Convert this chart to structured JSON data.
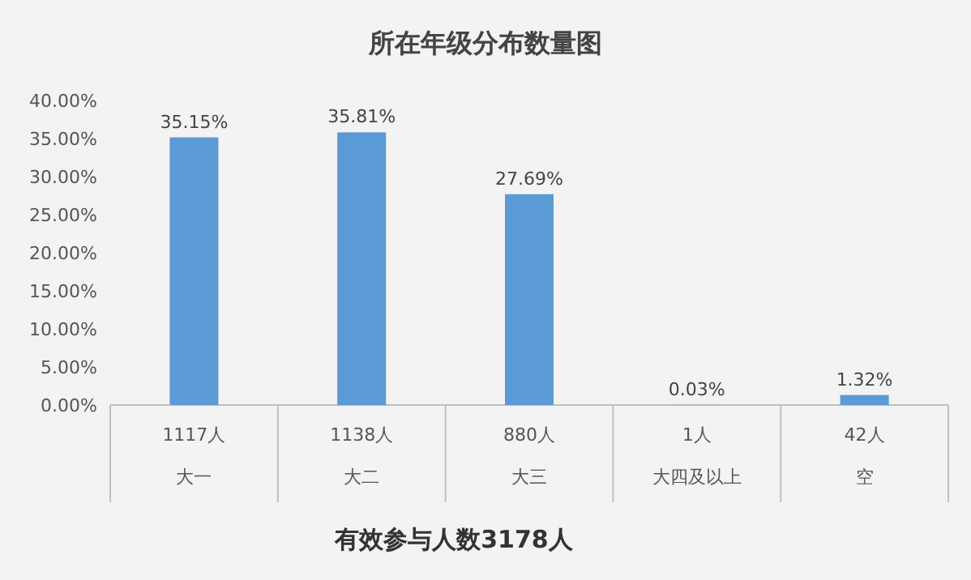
{
  "chart_data": {
    "type": "bar",
    "title": "所在年级分布数量图",
    "categories": [
      "大一",
      "大二",
      "大三",
      "大四及以上",
      "空"
    ],
    "values": [
      35.15,
      35.81,
      27.69,
      0.03,
      1.32
    ],
    "value_labels": [
      "35.15%",
      "35.81%",
      "27.69%",
      "0.03%",
      "1.32%"
    ],
    "color": "#5b9bd5",
    "ylim": [
      0,
      40
    ],
    "yticks": [
      {
        "value": 0,
        "label": "0.00%"
      },
      {
        "value": 5,
        "label": "5.00%"
      },
      {
        "value": 10,
        "label": "10.00%"
      },
      {
        "value": 15,
        "label": "15.00%"
      },
      {
        "value": 20,
        "label": "20.00%"
      },
      {
        "value": 25,
        "label": "25.00%"
      },
      {
        "value": 30,
        "label": "30.00%"
      },
      {
        "value": 35,
        "label": "35.00%"
      },
      {
        "value": 40,
        "label": "40.00%"
      }
    ],
    "annotations": [
      "1117人",
      "1138人",
      "880人",
      "1人",
      "42人",
      "有效参与人数3178人"
    ]
  }
}
